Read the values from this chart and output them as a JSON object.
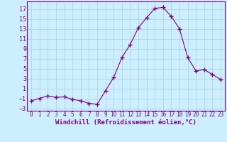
{
  "x": [
    0,
    1,
    2,
    3,
    4,
    5,
    6,
    7,
    8,
    9,
    10,
    11,
    12,
    13,
    14,
    15,
    16,
    17,
    18,
    19,
    20,
    21,
    22,
    23
  ],
  "y": [
    -1.5,
    -1.0,
    -0.5,
    -0.8,
    -0.7,
    -1.2,
    -1.5,
    -2.0,
    -2.2,
    0.5,
    3.2,
    7.2,
    9.8,
    13.2,
    15.2,
    17.1,
    17.3,
    15.5,
    13.0,
    7.2,
    4.5,
    4.8,
    3.8,
    2.8
  ],
  "line_color": "#800080",
  "marker": "+",
  "marker_size": 4,
  "background_color": "#cceeff",
  "grid_color": "#aad4d4",
  "xlabel": "Windchill (Refroidissement éolien,°C)",
  "xlim": [
    -0.5,
    23.5
  ],
  "ylim": [
    -3.5,
    18.5
  ],
  "yticks": [
    -3,
    -1,
    1,
    3,
    5,
    7,
    9,
    11,
    13,
    15,
    17
  ],
  "xticks": [
    0,
    1,
    2,
    3,
    4,
    5,
    6,
    7,
    8,
    9,
    10,
    11,
    12,
    13,
    14,
    15,
    16,
    17,
    18,
    19,
    20,
    21,
    22,
    23
  ],
  "label_fontsize": 6.5,
  "tick_fontsize": 6
}
